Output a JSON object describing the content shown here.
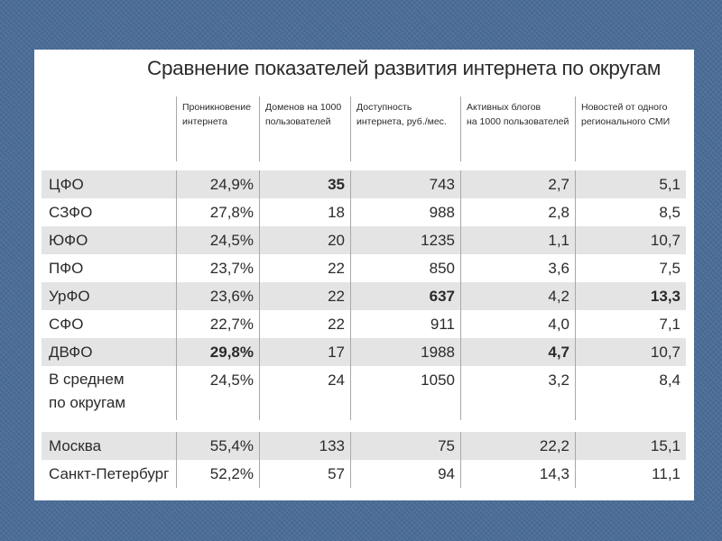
{
  "title": "Сравнение показателей развития интернета по округам",
  "columns": [
    [
      "Проникновение",
      "интернета"
    ],
    [
      "Доменов на 1000",
      "пользователей"
    ],
    [
      "Доступность",
      "интернета, руб./мес."
    ],
    [
      "Активных блогов",
      "на 1000 пользователей"
    ],
    [
      "Новостей от одного",
      "регионального СМИ"
    ]
  ],
  "rows": [
    {
      "name": "ЦФО",
      "values": [
        "24,9%",
        "35",
        "743",
        "2,7",
        "5,1"
      ],
      "bold": [
        false,
        true,
        false,
        false,
        false
      ]
    },
    {
      "name": "СЗФО",
      "values": [
        "27,8%",
        "18",
        "988",
        "2,8",
        "8,5"
      ],
      "bold": [
        false,
        false,
        false,
        false,
        false
      ]
    },
    {
      "name": "ЮФО",
      "values": [
        "24,5%",
        "20",
        "1235",
        "1,1",
        "10,7"
      ],
      "bold": [
        false,
        false,
        false,
        false,
        false
      ]
    },
    {
      "name": "ПФО",
      "values": [
        "23,7%",
        "22",
        "850",
        "3,6",
        "7,5"
      ],
      "bold": [
        false,
        false,
        false,
        false,
        false
      ]
    },
    {
      "name": "УрФО",
      "values": [
        "23,6%",
        "22",
        "637",
        "4,2",
        "13,3"
      ],
      "bold": [
        false,
        false,
        true,
        false,
        true
      ]
    },
    {
      "name": "СФО",
      "values": [
        "22,7%",
        "22",
        "911",
        "4,0",
        "7,1"
      ],
      "bold": [
        false,
        false,
        false,
        false,
        false
      ]
    },
    {
      "name": "ДВФО",
      "values": [
        "29,8%",
        "17",
        "1988",
        "4,7",
        "10,7"
      ],
      "bold": [
        true,
        false,
        false,
        true,
        false
      ]
    },
    {
      "name_lines": [
        "В среднем",
        "по округам"
      ],
      "values": [
        "24,5%",
        "24",
        "1050",
        "3,2",
        "8,4"
      ],
      "bold": [
        false,
        false,
        false,
        false,
        false
      ]
    },
    {
      "name": "Москва",
      "values": [
        "55,4%",
        "133",
        "75",
        "22,2",
        "15,1"
      ],
      "bold": [
        false,
        false,
        false,
        false,
        false
      ]
    },
    {
      "name": "Санкт-Петербург",
      "values": [
        "52,2%",
        "57",
        "94",
        "14,3",
        "11,1"
      ],
      "bold": [
        false,
        false,
        false,
        false,
        false
      ]
    }
  ]
}
